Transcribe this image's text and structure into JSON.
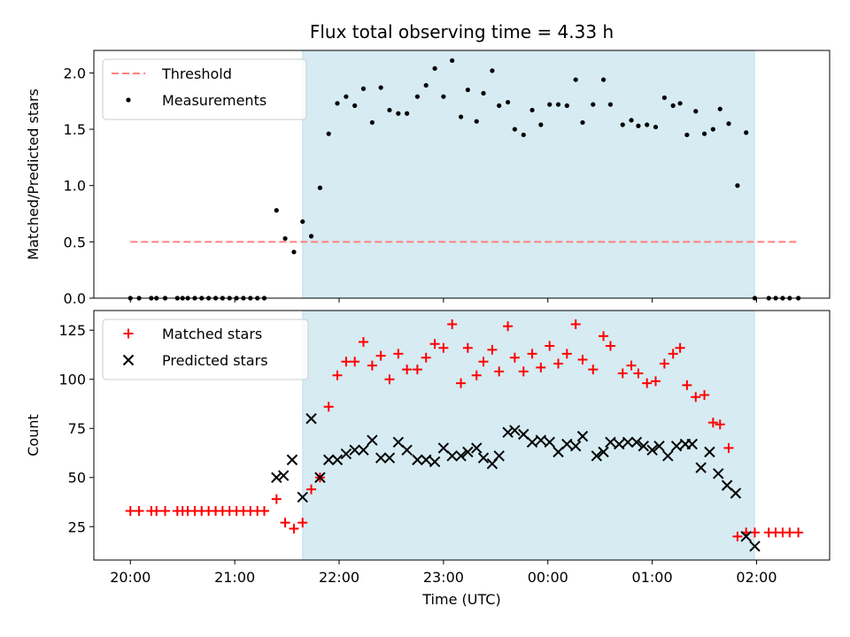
{
  "chart_data": [
    {
      "type": "scatter",
      "title": "Flux total observing time = 4.33 h",
      "ylabel": "Matched/Predicted stars",
      "xlabel": "",
      "xlim": [
        -0.35,
        6.7
      ],
      "ylim": [
        0,
        2.2
      ],
      "yticks": [
        0,
        0.5,
        1.0,
        1.5,
        2.0
      ],
      "ytick_labels": [
        "0.0",
        "0.5",
        "1.0",
        "1.5",
        "2.0"
      ],
      "xticks": [
        0,
        1,
        2,
        3,
        4,
        5,
        6
      ],
      "shaded_region": [
        1.65,
        5.98
      ],
      "shaded_color": "#add8e6",
      "legend_position": "upper-left",
      "threshold": {
        "name": "Threshold",
        "value": 0.5,
        "x_range": [
          0,
          6.4
        ],
        "color": "#ff7f7f"
      },
      "series": [
        {
          "name": "Measurements",
          "color": "#000000",
          "marker": "dot",
          "x": [
            0,
            0.083,
            0.2,
            0.25,
            0.333,
            0.45,
            0.5,
            0.55,
            0.617,
            0.683,
            0.75,
            0.817,
            0.883,
            0.95,
            1.017,
            1.083,
            1.15,
            1.217,
            1.283,
            1.4,
            1.483,
            1.567,
            1.65,
            1.733,
            1.817,
            1.9,
            1.983,
            2.067,
            2.15,
            2.233,
            2.317,
            2.4,
            2.483,
            2.567,
            2.65,
            2.75,
            2.833,
            2.917,
            3.0,
            3.083,
            3.167,
            3.233,
            3.317,
            3.383,
            3.467,
            3.533,
            3.617,
            3.683,
            3.767,
            3.85,
            3.933,
            4.017,
            4.1,
            4.183,
            4.267,
            4.333,
            4.433,
            4.533,
            4.6,
            4.717,
            4.8,
            4.867,
            4.95,
            5.033,
            5.117,
            5.2,
            5.267,
            5.333,
            5.417,
            5.5,
            5.583,
            5.65,
            5.733,
            5.817,
            5.9,
            5.983,
            6.117,
            6.183,
            6.25,
            6.317,
            6.4
          ],
          "y": [
            0,
            0,
            0,
            0,
            0,
            0,
            0,
            0,
            0,
            0,
            0,
            0,
            0,
            0,
            0,
            0,
            0,
            0,
            0,
            0.78,
            0.53,
            0.41,
            0.68,
            0.55,
            0.98,
            1.46,
            1.73,
            1.79,
            1.71,
            1.86,
            1.56,
            1.87,
            1.67,
            1.64,
            1.64,
            1.79,
            1.89,
            2.04,
            1.79,
            2.11,
            1.61,
            1.85,
            1.57,
            1.82,
            2.02,
            1.71,
            1.74,
            1.5,
            1.45,
            1.67,
            1.54,
            1.72,
            1.72,
            1.71,
            1.94,
            1.56,
            1.72,
            1.94,
            1.72,
            1.54,
            1.58,
            1.53,
            1.54,
            1.52,
            1.78,
            1.71,
            1.73,
            1.45,
            1.66,
            1.46,
            1.5,
            1.68,
            1.55,
            1.0,
            1.47,
            0,
            0,
            0,
            0,
            0,
            0
          ]
        }
      ]
    },
    {
      "type": "scatter",
      "title": "",
      "ylabel": "Count",
      "xlabel": "Time (UTC)",
      "xlim": [
        -0.35,
        6.7
      ],
      "ylim": [
        8,
        135
      ],
      "yticks": [
        25,
        50,
        75,
        100,
        125
      ],
      "ytick_labels": [
        "25",
        "50",
        "75",
        "100",
        "125"
      ],
      "xticks": [
        0,
        1,
        2,
        3,
        4,
        5,
        6
      ],
      "xtick_labels": [
        "20:00",
        "21:00",
        "22:00",
        "23:00",
        "00:00",
        "01:00",
        "02:00"
      ],
      "shaded_region": [
        1.65,
        5.98
      ],
      "shaded_color": "#add8e6",
      "legend_position": "upper-left",
      "series": [
        {
          "name": "Matched stars",
          "color": "#ff0000",
          "marker": "plus",
          "x": [
            0,
            0.083,
            0.2,
            0.25,
            0.333,
            0.45,
            0.5,
            0.55,
            0.617,
            0.683,
            0.75,
            0.817,
            0.883,
            0.95,
            1.017,
            1.083,
            1.15,
            1.217,
            1.283,
            1.4,
            1.483,
            1.567,
            1.65,
            1.733,
            1.817,
            1.9,
            1.983,
            2.067,
            2.15,
            2.233,
            2.317,
            2.4,
            2.483,
            2.567,
            2.65,
            2.75,
            2.833,
            2.917,
            3.0,
            3.083,
            3.167,
            3.233,
            3.317,
            3.383,
            3.467,
            3.533,
            3.617,
            3.683,
            3.767,
            3.85,
            3.933,
            4.017,
            4.1,
            4.183,
            4.267,
            4.333,
            4.433,
            4.533,
            4.6,
            4.717,
            4.8,
            4.867,
            4.95,
            5.033,
            5.117,
            5.2,
            5.267,
            5.333,
            5.417,
            5.5,
            5.583,
            5.65,
            5.733,
            5.817,
            5.9,
            5.983,
            6.117,
            6.183,
            6.25,
            6.317,
            6.4
          ],
          "y": [
            33,
            33,
            33,
            33,
            33,
            33,
            33,
            33,
            33,
            33,
            33,
            33,
            33,
            33,
            33,
            33,
            33,
            33,
            33,
            39,
            27,
            24,
            27,
            44,
            50,
            86,
            102,
            109,
            109,
            119,
            107,
            112,
            100,
            113,
            105,
            105,
            111,
            118,
            116,
            128,
            98,
            116,
            102,
            109,
            115,
            104,
            127,
            111,
            104,
            113,
            106,
            117,
            108,
            113,
            128,
            110,
            105,
            122,
            117,
            103,
            107,
            103,
            98,
            99,
            108,
            113,
            116,
            97,
            91,
            92,
            78,
            77,
            65,
            20,
            22,
            22,
            22,
            22,
            22,
            22,
            22
          ]
        },
        {
          "name": "Predicted stars",
          "color": "#000000",
          "marker": "x",
          "x": [
            1.4,
            1.467,
            1.55,
            1.65,
            1.733,
            1.817,
            1.9,
            1.983,
            2.067,
            2.15,
            2.233,
            2.317,
            2.4,
            2.483,
            2.567,
            2.65,
            2.75,
            2.833,
            2.917,
            3.0,
            3.083,
            3.167,
            3.233,
            3.317,
            3.383,
            3.467,
            3.533,
            3.617,
            3.683,
            3.767,
            3.85,
            3.933,
            4.017,
            4.1,
            4.183,
            4.267,
            4.333,
            4.467,
            4.533,
            4.6,
            4.683,
            4.767,
            4.85,
            4.917,
            5.0,
            5.067,
            5.15,
            5.233,
            5.317,
            5.383,
            5.467,
            5.55,
            5.633,
            5.717,
            5.8,
            5.9,
            5.983
          ],
          "y": [
            50,
            51,
            59,
            40,
            80,
            50,
            59,
            59,
            62,
            64,
            64,
            69,
            60,
            60,
            68,
            64,
            59,
            59,
            58,
            65,
            61,
            61,
            63,
            65,
            60,
            57,
            61,
            73,
            74,
            72,
            68,
            69,
            68,
            63,
            67,
            66,
            71,
            61,
            63,
            68,
            67,
            68,
            68,
            66,
            64,
            66,
            61,
            66,
            67,
            67,
            55,
            63,
            52,
            46,
            42,
            20,
            15
          ]
        }
      ]
    }
  ]
}
